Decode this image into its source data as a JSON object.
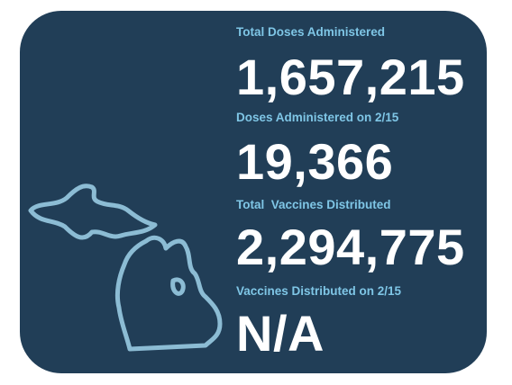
{
  "stats": [
    {
      "label": "Total Doses Administered",
      "value": "1,657,215"
    },
    {
      "label": "Doses Administered on 2/15",
      "value": "19,366"
    },
    {
      "label": "Total  Vaccines Distributed",
      "value": "2,294,775"
    },
    {
      "label": "Vaccines Distributed on 2/15",
      "value": "N/A"
    }
  ]
}
